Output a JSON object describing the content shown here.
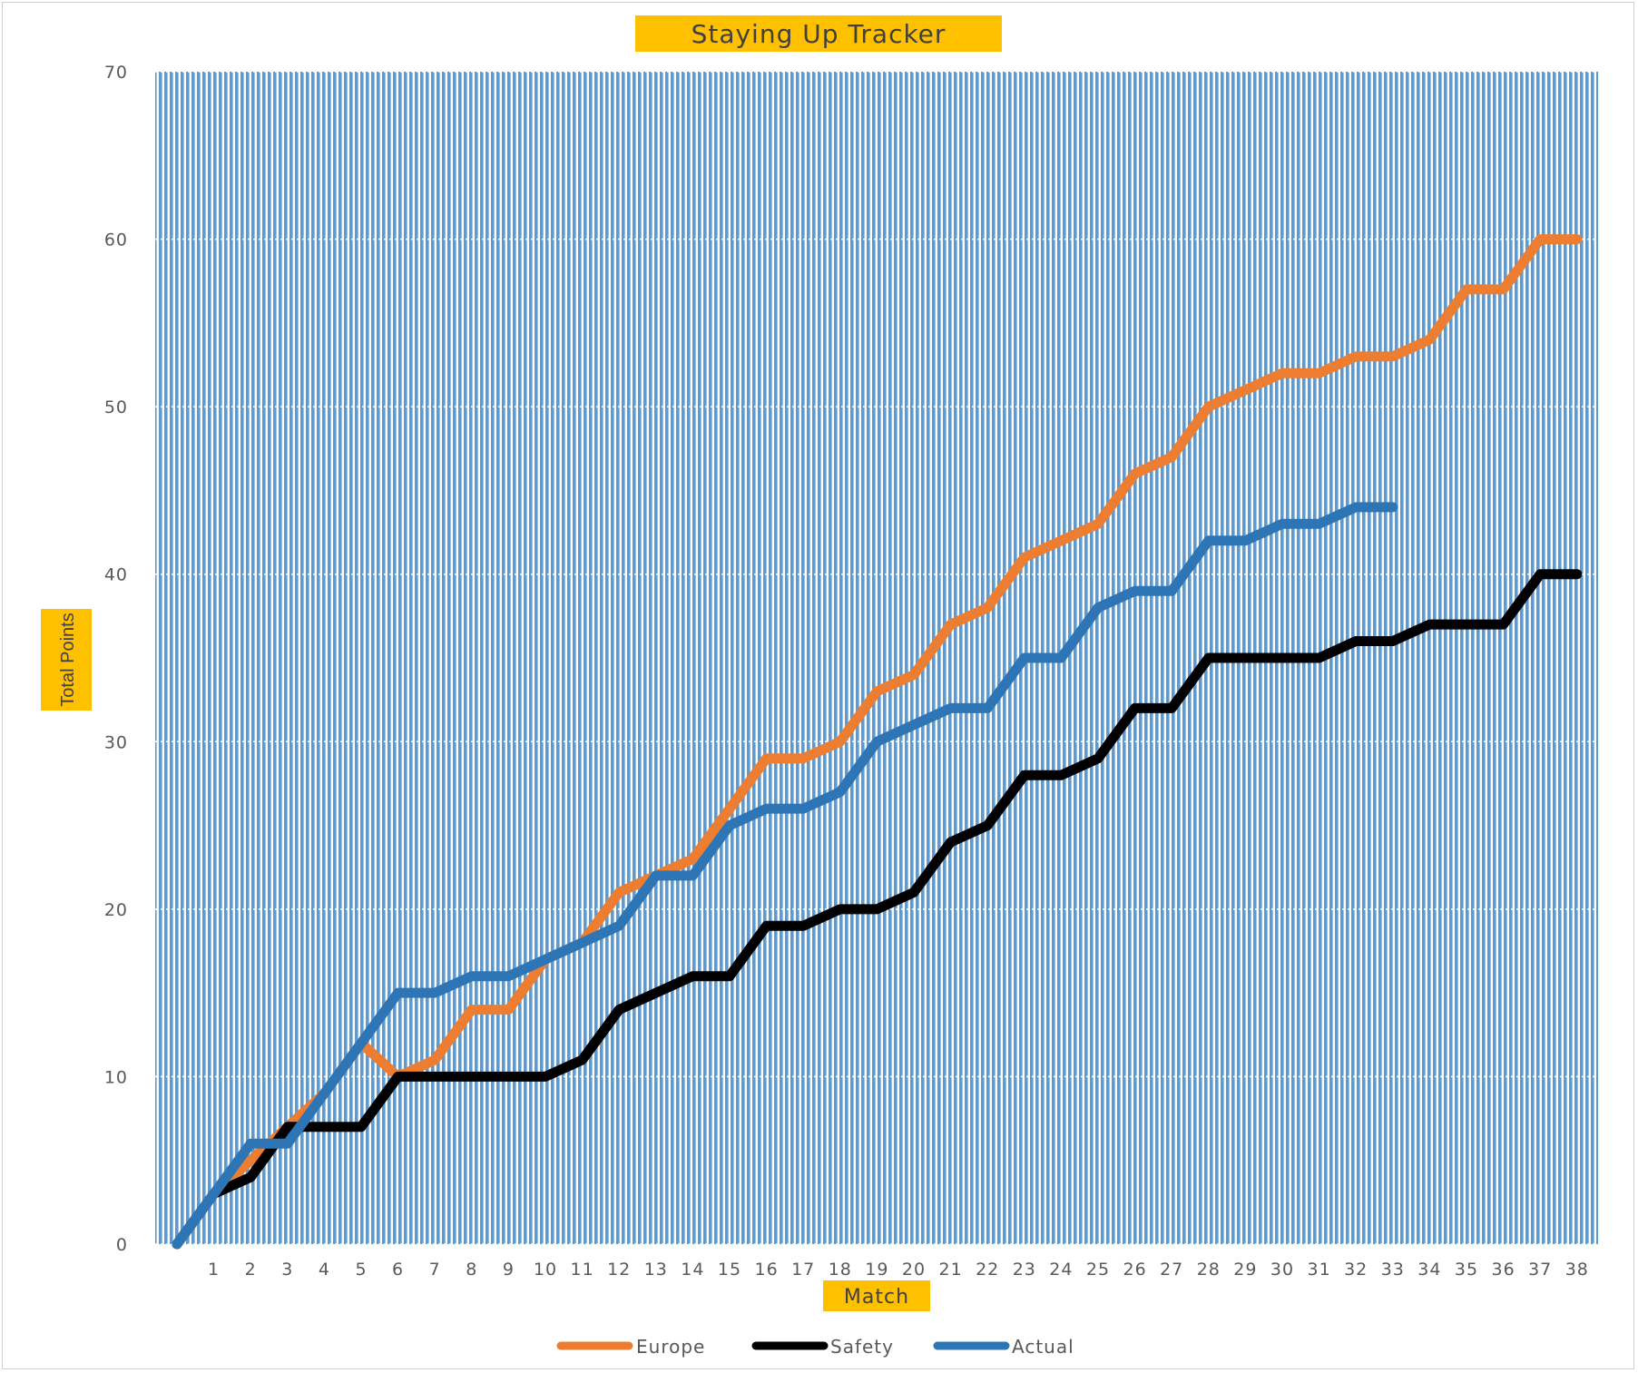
{
  "chart_data": {
    "type": "line",
    "title": "Staying Up Tracker",
    "xlabel": "Match",
    "ylabel": "Total Points",
    "ylim": [
      0,
      70
    ],
    "yticks": [
      0,
      10,
      20,
      30,
      40,
      50,
      60,
      70
    ],
    "x": [
      0,
      1,
      2,
      3,
      4,
      5,
      6,
      7,
      8,
      9,
      10,
      11,
      12,
      13,
      14,
      15,
      16,
      17,
      18,
      19,
      20,
      21,
      22,
      23,
      24,
      25,
      26,
      27,
      28,
      29,
      30,
      31,
      32,
      33,
      34,
      35,
      36,
      37,
      38
    ],
    "xtick_labels": [
      "1",
      "2",
      "3",
      "4",
      "5",
      "6",
      "7",
      "8",
      "9",
      "10",
      "11",
      "12",
      "13",
      "14",
      "15",
      "16",
      "17",
      "18",
      "19",
      "20",
      "21",
      "22",
      "23",
      "24",
      "25",
      "26",
      "27",
      "28",
      "29",
      "30",
      "31",
      "32",
      "33",
      "34",
      "35",
      "36",
      "37",
      "38"
    ],
    "grid": true,
    "legend_position": "bottom",
    "background": "vertical blue stripes",
    "colors": {
      "stripe": "#5b9bd5",
      "gridline": "#ffffff",
      "title_box": "#ffc000",
      "Europe": "#ed7d31",
      "Safety": "#000000",
      "Actual": "#2e75b6"
    },
    "series": [
      {
        "name": "Europe",
        "color": "#ed7d31",
        "values": [
          0,
          3,
          5,
          7,
          9,
          12,
          10,
          11,
          14,
          14,
          17,
          18,
          21,
          22,
          23,
          26,
          29,
          29,
          30,
          33,
          34,
          37,
          38,
          41,
          42,
          43,
          46,
          47,
          50,
          51,
          52,
          52,
          53,
          53,
          54,
          57,
          57,
          60,
          60
        ]
      },
      {
        "name": "Safety",
        "color": "#000000",
        "values": [
          0,
          3,
          4,
          7,
          7,
          7,
          10,
          10,
          10,
          10,
          10,
          11,
          14,
          15,
          16,
          16,
          19,
          19,
          20,
          20,
          21,
          24,
          25,
          28,
          28,
          29,
          32,
          32,
          35,
          35,
          35,
          35,
          36,
          36,
          37,
          37,
          37,
          40,
          40
        ]
      },
      {
        "name": "Actual",
        "color": "#2e75b6",
        "values": [
          0,
          3,
          6,
          6,
          9,
          12,
          15,
          15,
          16,
          16,
          17,
          18,
          19,
          22,
          22,
          25,
          26,
          26,
          27,
          30,
          31,
          32,
          32,
          35,
          35,
          38,
          39,
          39,
          42,
          42,
          43,
          43,
          44,
          44,
          null,
          null,
          null,
          null,
          null
        ]
      }
    ]
  }
}
